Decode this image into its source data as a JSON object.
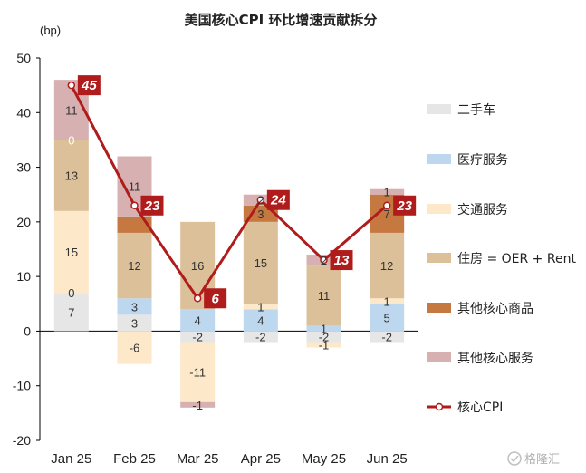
{
  "chart_data": {
    "type": "bar",
    "title": "美国核心CPI 环比增速贡献拆分",
    "unit": "(bp)",
    "categories": [
      "Jan 25",
      "Feb 25",
      "Mar 25",
      "Apr 25",
      "May 25",
      "Jun 25"
    ],
    "ylim": [
      -20,
      50
    ],
    "yticks": [
      -20,
      -10,
      0,
      10,
      20,
      30,
      40,
      50
    ],
    "grid": false,
    "legend_position": "right",
    "series": [
      {
        "name": "二手车",
        "color": "#e6e6e6",
        "values": [
          7,
          3,
          -2,
          -2,
          -2,
          -2
        ],
        "labels": [
          "7",
          "3",
          "-2",
          "-2",
          "-2",
          "-2"
        ]
      },
      {
        "name": "医疗服务",
        "color": "#bdd7ee",
        "values": [
          0,
          3,
          4,
          4,
          1,
          5
        ],
        "labels": [
          "0",
          "3",
          "4",
          "4",
          "1",
          "5"
        ]
      },
      {
        "name": "交通服务",
        "color": "#fde9c9",
        "values": [
          15,
          -6,
          -11,
          1,
          -1,
          1
        ],
        "labels": [
          "15",
          "-6",
          "-11",
          "1",
          "-1",
          "1"
        ]
      },
      {
        "name": "住房 = OER + Rent",
        "color": "#dcc09a",
        "values": [
          13,
          12,
          16,
          15,
          11,
          12
        ],
        "labels": [
          "13",
          "12",
          "16",
          "15",
          "11",
          "12"
        ]
      },
      {
        "name": "其他核心商品",
        "color": "#c5783f",
        "values": [
          0,
          3,
          0,
          3,
          0,
          7
        ],
        "labels": [
          "",
          "",
          "",
          "3",
          "",
          "7"
        ]
      },
      {
        "name": "其他核心服务",
        "color": "#d7b1b1",
        "values": [
          11,
          11,
          -1,
          2,
          2,
          1
        ],
        "labels": [
          "11",
          "11",
          "-1",
          "2",
          "2",
          "1"
        ]
      }
    ],
    "line": {
      "name": "核心CPI",
      "color": "#b01b1b",
      "values": [
        45,
        23,
        6,
        24,
        13,
        23
      ],
      "labels": [
        "45",
        "23",
        "6",
        "24",
        "13",
        "23"
      ]
    },
    "extra_labels": [
      {
        "category": "Jan 25",
        "text": "0"
      }
    ]
  },
  "watermark": "格隆汇"
}
